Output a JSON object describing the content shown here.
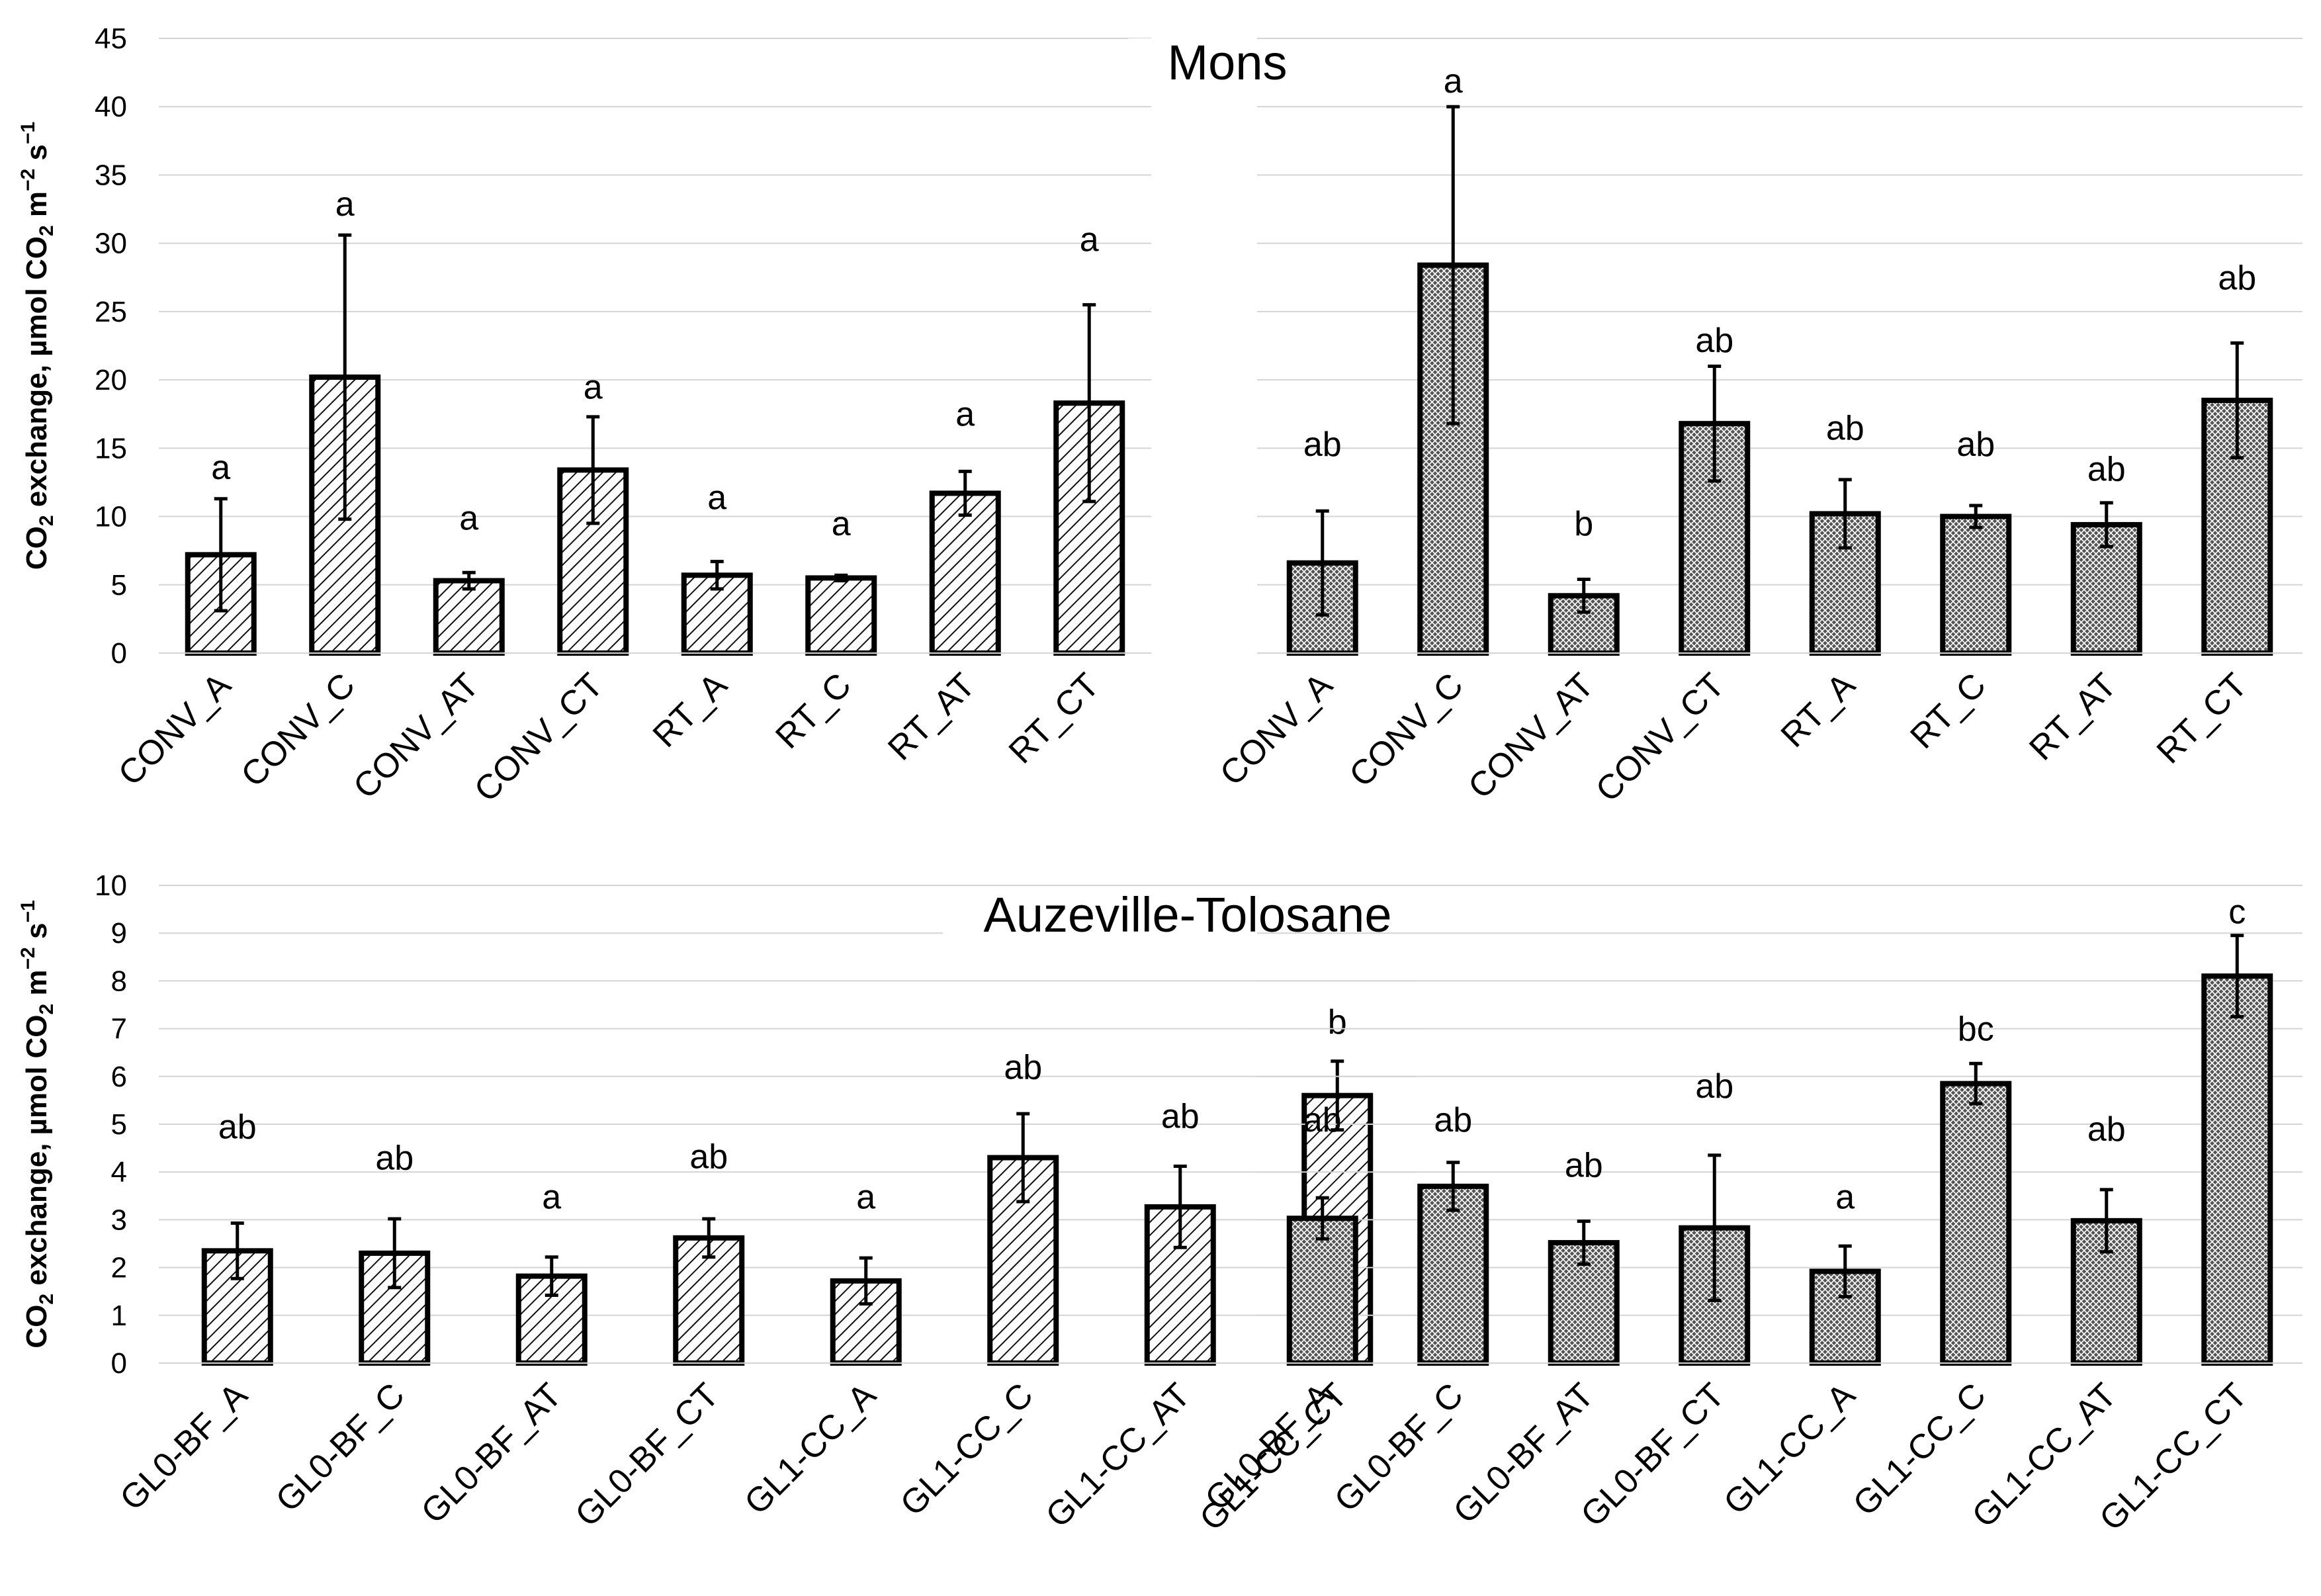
{
  "chart_data": [
    {
      "type": "bar",
      "panel": "top-left",
      "site_title": "Mons",
      "ylabel": {
        "pre": "CO",
        "sub": "2",
        "mid": " exchange, µmol CO",
        "sub2": "2",
        "post": " m",
        "sup1": "−2",
        "post2": " s",
        "sup2": "−1"
      },
      "ylim": [
        0,
        45
      ],
      "yticks": [
        0,
        5,
        10,
        15,
        20,
        25,
        30,
        35,
        40,
        45
      ],
      "show_yaxis_labels": true,
      "pattern": "hatch",
      "categories": [
        "CONV_A",
        "CONV_C",
        "CONV_AT",
        "CONV_CT",
        "RT_A",
        "RT_C",
        "RT_AT",
        "RT_CT"
      ],
      "values": [
        7.2,
        20.2,
        5.3,
        13.4,
        5.7,
        5.5,
        11.7,
        18.3
      ],
      "errors": [
        4.1,
        10.4,
        0.6,
        3.9,
        1.0,
        0.2,
        1.6,
        7.2
      ],
      "letters": [
        "a",
        "a",
        "a",
        "a",
        "a",
        "a",
        "a",
        "a"
      ],
      "letter_y": [
        13.6,
        32.9,
        9.9,
        19.5,
        11.4,
        9.5,
        17.5,
        30.3
      ]
    },
    {
      "type": "bar",
      "panel": "top-right",
      "ylim": [
        0,
        45
      ],
      "yticks": [
        0,
        5,
        10,
        15,
        20,
        25,
        30,
        35,
        40,
        45
      ],
      "show_yaxis_labels": false,
      "pattern": "crosshatch",
      "categories": [
        "CONV_A",
        "CONV_C",
        "CONV_AT",
        "CONV_CT",
        "RT_A",
        "RT_C",
        "RT_AT",
        "RT_CT"
      ],
      "values": [
        6.6,
        28.4,
        4.2,
        16.8,
        10.2,
        10.0,
        9.4,
        18.5
      ],
      "errors": [
        3.8,
        11.6,
        1.2,
        4.2,
        2.5,
        0.8,
        1.6,
        4.2
      ],
      "letters": [
        "ab",
        "a",
        "b",
        "ab",
        "ab",
        "ab",
        "ab",
        "ab"
      ],
      "letter_y": [
        15.3,
        41.9,
        9.5,
        22.9,
        16.5,
        15.3,
        13.5,
        27.5
      ]
    },
    {
      "type": "bar",
      "panel": "bottom-left",
      "site_title": "Auzeville-Tolosane",
      "ylabel": {
        "pre": "CO",
        "sub": "2",
        "mid": " exchange, µmol CO",
        "sub2": "2",
        "post": " m",
        "sup1": "−2",
        "post2": " s",
        "sup2": "−1"
      },
      "ylim": [
        0,
        10
      ],
      "yticks": [
        0,
        1,
        2,
        3,
        4,
        5,
        6,
        7,
        8,
        9,
        10
      ],
      "show_yaxis_labels": true,
      "pattern": "hatch",
      "categories": [
        "GL0-BF_A",
        "GL0-BF_C",
        "GL0-BF_AT",
        "GL0-BF_CT",
        "GL1-CC_A",
        "GL1-CC_C",
        "GL1-CC_AT",
        "GL1-CC_CT"
      ],
      "values": [
        2.35,
        2.3,
        1.82,
        2.62,
        1.72,
        4.3,
        3.27,
        5.6
      ],
      "errors": [
        0.58,
        0.72,
        0.4,
        0.4,
        0.48,
        0.92,
        0.85,
        0.72
      ],
      "letters": [
        "ab",
        "ab",
        "a",
        "ab",
        "a",
        "ab",
        "ab",
        "b"
      ],
      "letter_y": [
        4.95,
        4.3,
        3.48,
        4.33,
        3.48,
        6.2,
        5.17,
        7.15
      ]
    },
    {
      "type": "bar",
      "panel": "bottom-right",
      "ylim": [
        0,
        10
      ],
      "yticks": [
        0,
        1,
        2,
        3,
        4,
        5,
        6,
        7,
        8,
        9,
        10
      ],
      "show_yaxis_labels": false,
      "pattern": "crosshatch",
      "categories": [
        "GL0-BF_A",
        "GL0-BF_C",
        "GL0-BF_AT",
        "GL0-BF_CT",
        "GL1-CC_A",
        "GL1-CC_C",
        "GL1-CC_AT",
        "GL1-CC_CT"
      ],
      "values": [
        3.03,
        3.7,
        2.52,
        2.83,
        1.92,
        5.85,
        2.98,
        8.1
      ],
      "errors": [
        0.43,
        0.5,
        0.45,
        1.52,
        0.53,
        0.42,
        0.65,
        0.85
      ],
      "letters": [
        "ab",
        "ab",
        "ab",
        "ab",
        "a",
        "bc",
        "ab",
        "c"
      ],
      "letter_y": [
        5.1,
        5.1,
        4.15,
        5.8,
        3.48,
        7.0,
        4.9,
        9.45
      ]
    }
  ]
}
